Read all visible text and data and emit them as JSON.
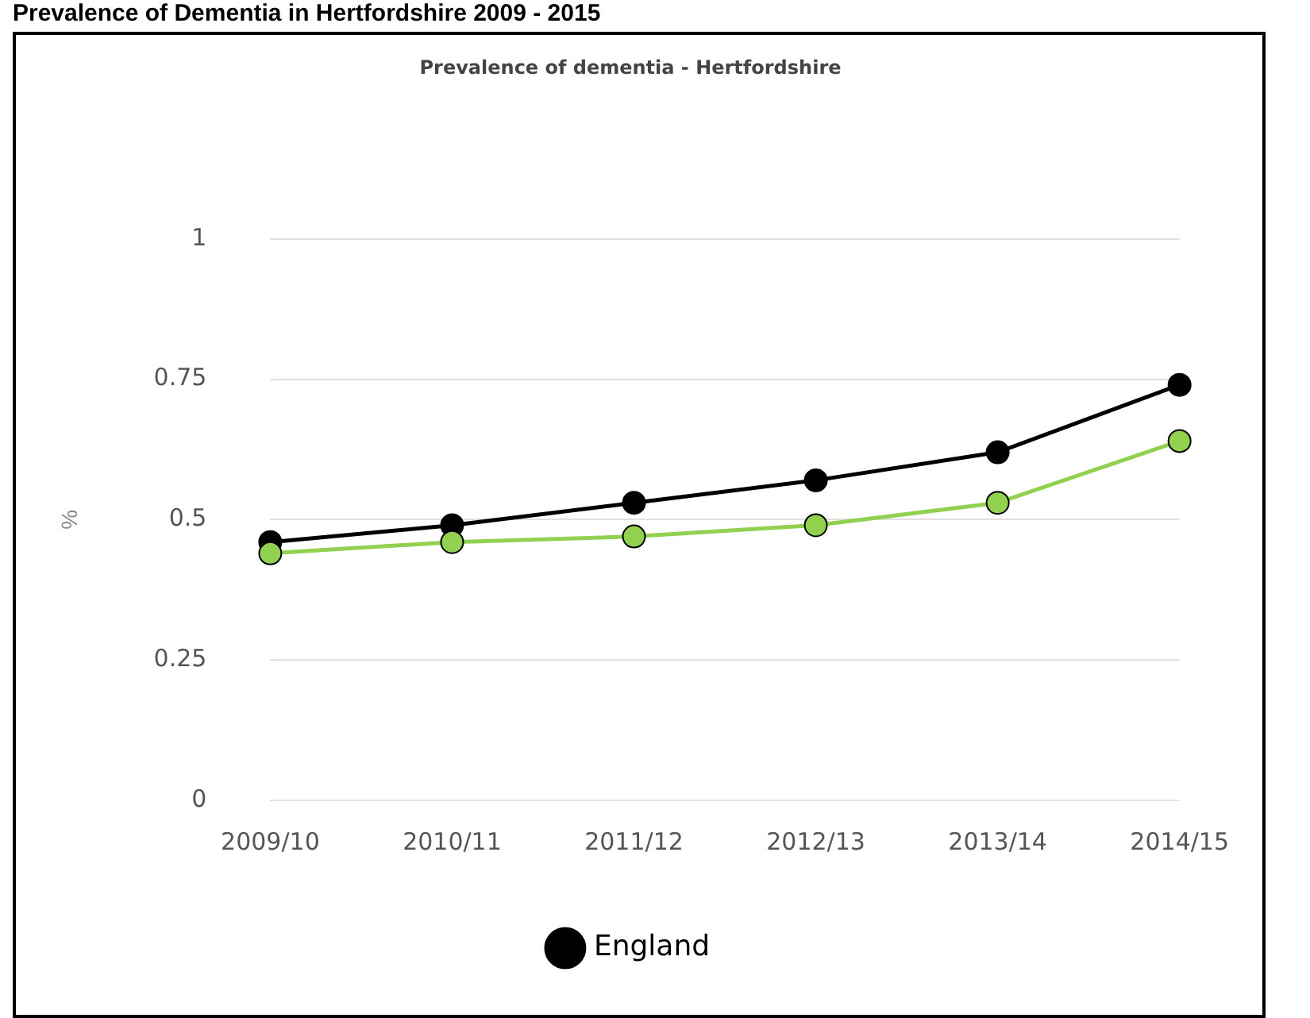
{
  "chart_data": {
    "type": "line",
    "title": "Prevalence of Dementia in Hertfordshire 2009 - 2015",
    "subtitle": "Prevalence of dementia - Hertfordshire",
    "ylabel": "%",
    "categories": [
      "2009/10",
      "2010/11",
      "2011/12",
      "2012/13",
      "2013/14",
      "2014/15"
    ],
    "series": [
      {
        "name": "England",
        "color": "#000000",
        "values": [
          0.46,
          0.49,
          0.53,
          0.57,
          0.62,
          0.74
        ],
        "marker": "circle"
      },
      {
        "color": "#92d050",
        "values": [
          0.44,
          0.46,
          0.47,
          0.49,
          0.53,
          0.64
        ],
        "marker": "circle"
      }
    ],
    "ylim": [
      0,
      1
    ],
    "yticks": [
      0,
      0.25,
      0.5,
      0.75,
      1
    ],
    "grid": "y",
    "legend": "bottom",
    "line_style": "solid"
  }
}
